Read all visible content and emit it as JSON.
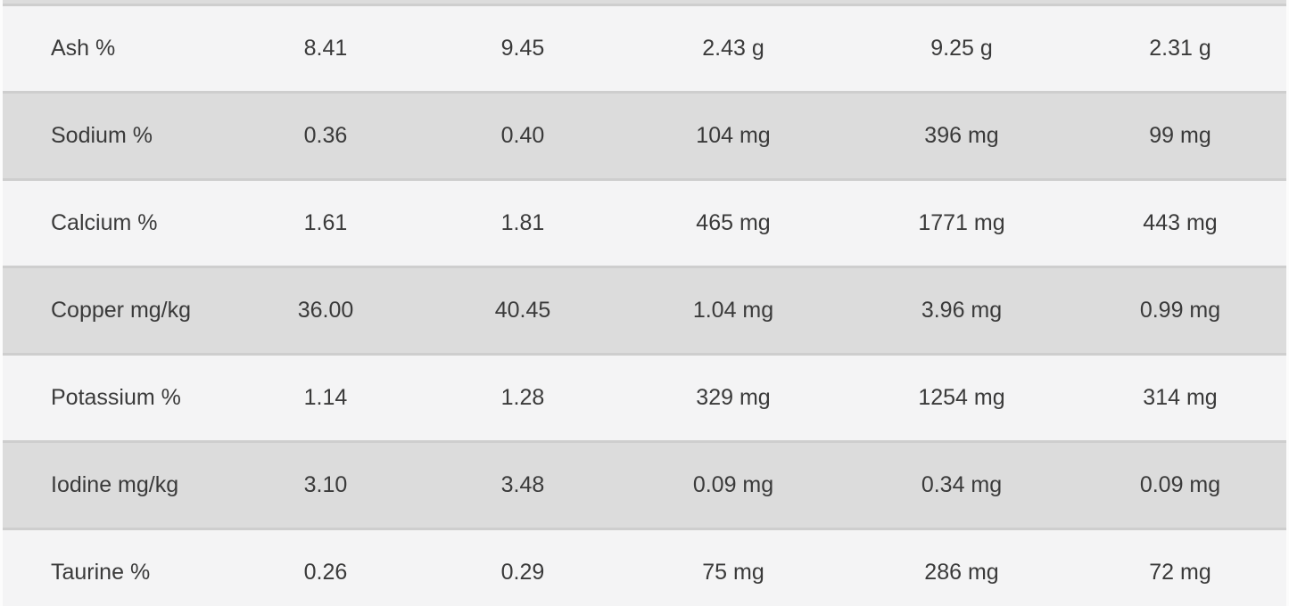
{
  "colors": {
    "page_bg": "#fcfcfc",
    "row_light": "#f4f4f5",
    "row_dark": "#dcdcdc",
    "border": "#cecece",
    "text": "#3a3a3a"
  },
  "table": {
    "rows": [
      {
        "label": "Ash %",
        "values": [
          "8.41",
          "9.45",
          "2.43 g",
          "9.25 g",
          "2.31 g"
        ]
      },
      {
        "label": "Sodium %",
        "values": [
          "0.36",
          "0.40",
          "104 mg",
          "396 mg",
          "99 mg"
        ]
      },
      {
        "label": "Calcium %",
        "values": [
          "1.61",
          "1.81",
          "465 mg",
          "1771 mg",
          "443 mg"
        ]
      },
      {
        "label": "Copper mg/kg",
        "values": [
          "36.00",
          "40.45",
          "1.04 mg",
          "3.96 mg",
          "0.99 mg"
        ]
      },
      {
        "label": "Potassium %",
        "values": [
          "1.14",
          "1.28",
          "329 mg",
          "1254 mg",
          "314 mg"
        ]
      },
      {
        "label": "Iodine mg/kg",
        "values": [
          "3.10",
          "3.48",
          "0.09 mg",
          "0.34 mg",
          "0.09 mg"
        ]
      },
      {
        "label": "Taurine %",
        "values": [
          "0.26",
          "0.29",
          "75 mg",
          "286 mg",
          "72 mg"
        ]
      }
    ]
  }
}
